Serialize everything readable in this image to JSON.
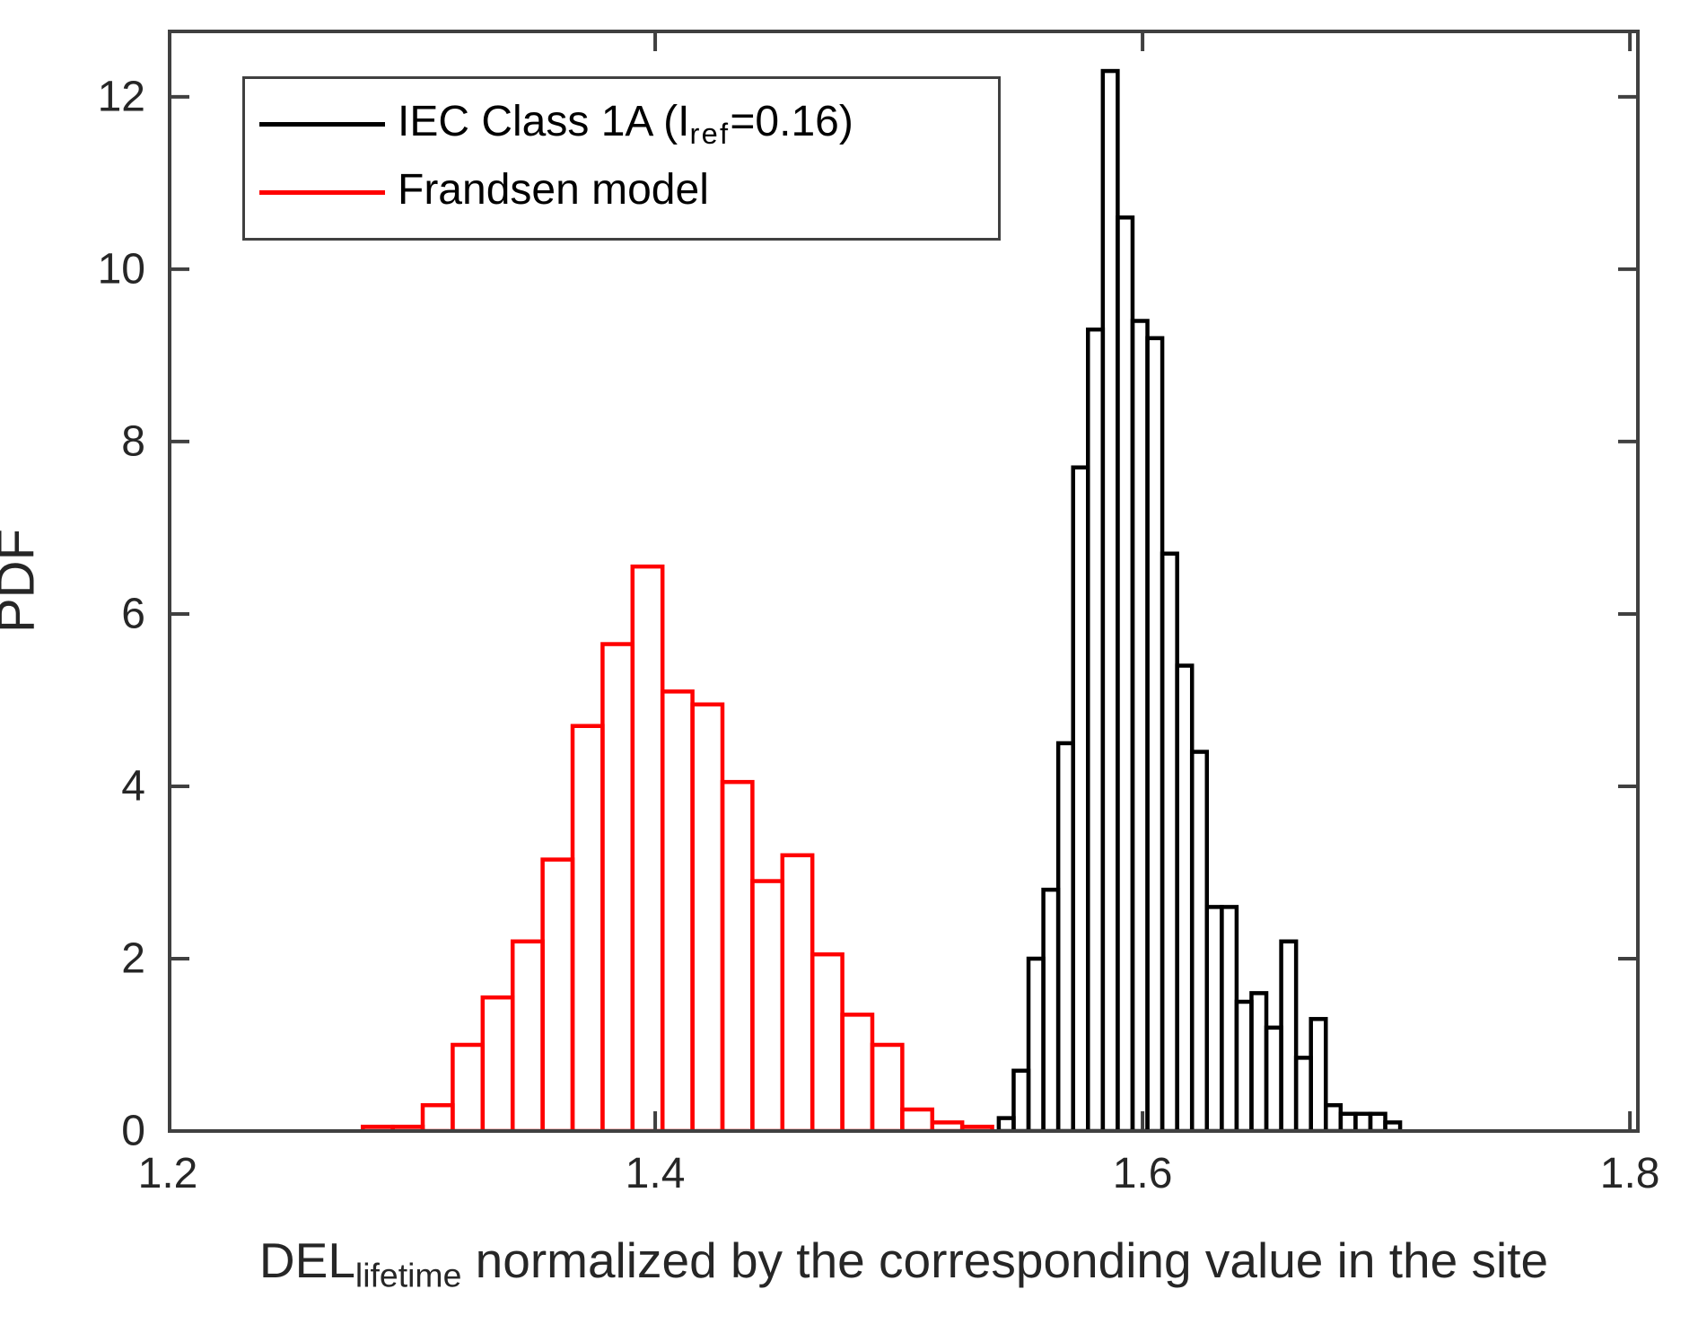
{
  "figure": {
    "background": "#ffffff",
    "axis_color": "#262626",
    "box_color": "#404040"
  },
  "legend": {
    "items": [
      {
        "pre": "IEC Class 1A (I",
        "sub": "ref",
        "post": "=0.16)",
        "color": "#000000"
      },
      {
        "pre": "Frandsen model",
        "sub": "",
        "post": "",
        "color": "#ff0000"
      }
    ]
  },
  "chart_data": {
    "type": "bar",
    "subtype": "histogram-outline",
    "title": "",
    "ylabel": "PDF",
    "xlabel_pre": "DEL",
    "xlabel_sub": "lifetime",
    "xlabel_post": " normalized by the corresponding value in the site",
    "xlim": [
      1.2,
      1.804
    ],
    "ylim": [
      0,
      12.78
    ],
    "xticks": [
      1.2,
      1.4,
      1.6,
      1.8
    ],
    "yticks": [
      0,
      2,
      4,
      6,
      8,
      10,
      12
    ],
    "grid": false,
    "legend_position": "top-left-inside",
    "series": [
      {
        "name": "IEC Class 1A (I_ref=0.16)",
        "color": "#000000",
        "bin_start": 1.541,
        "bin_width": 0.0061,
        "values": [
          0.15,
          0.7,
          2.0,
          2.8,
          4.5,
          7.7,
          9.3,
          12.3,
          10.6,
          9.4,
          9.2,
          6.7,
          5.4,
          4.4,
          2.6,
          2.6,
          1.5,
          1.6,
          1.2,
          2.2,
          0.85,
          1.3,
          0.3,
          0.2,
          0.2,
          0.2,
          0.1
        ]
      },
      {
        "name": "Frandsen model",
        "color": "#ff0000",
        "bin_start": 1.28,
        "bin_width": 0.0123,
        "values": [
          0.05,
          0.05,
          0.3,
          1.0,
          1.55,
          2.2,
          3.15,
          4.7,
          5.65,
          6.55,
          5.1,
          4.95,
          4.05,
          2.9,
          3.2,
          2.05,
          1.35,
          1.0,
          0.25,
          0.1,
          0.05
        ]
      }
    ]
  }
}
